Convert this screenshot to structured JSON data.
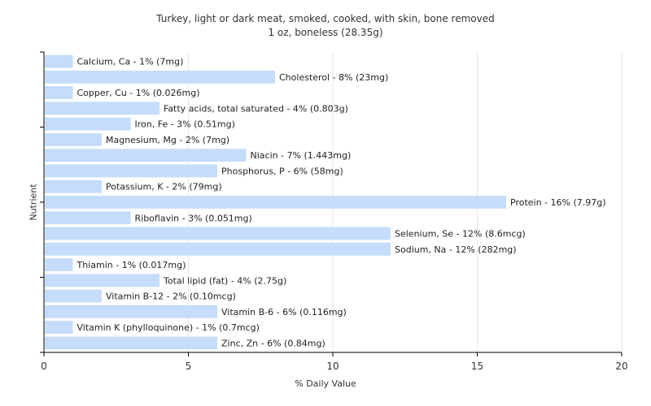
{
  "chart_data": {
    "type": "bar",
    "orientation": "horizontal",
    "title": "Turkey, light or dark meat, smoked, cooked, with skin, bone removed",
    "subtitle": "1 oz, boneless (28.35g)",
    "xlabel": "% Daily Value",
    "ylabel": "Nutrient",
    "xlim": [
      0,
      20
    ],
    "xticks": [
      "0",
      "5",
      "10",
      "15",
      "20"
    ],
    "grid": true,
    "bar_color": "#c5dcfb",
    "categories": [
      "Calcium, Ca",
      "Cholesterol",
      "Copper, Cu",
      "Fatty acids, total saturated",
      "Iron, Fe",
      "Magnesium, Mg",
      "Niacin",
      "Phosphorus, P",
      "Potassium, K",
      "Protein",
      "Riboflavin",
      "Selenium, Se",
      "Sodium, Na",
      "Thiamin",
      "Total lipid (fat)",
      "Vitamin B-12",
      "Vitamin B-6",
      "Vitamin K (phylloquinone)",
      "Zinc, Zn"
    ],
    "values": [
      1,
      8,
      1,
      4,
      3,
      2,
      7,
      6,
      2,
      16,
      3,
      12,
      12,
      1,
      4,
      2,
      6,
      1,
      6
    ],
    "bar_labels": [
      "Calcium, Ca - 1% (7mg)",
      "Cholesterol - 8% (23mg)",
      "Copper, Cu - 1% (0.026mg)",
      "Fatty acids, total saturated - 4% (0.803g)",
      "Iron, Fe - 3% (0.51mg)",
      "Magnesium, Mg - 2% (7mg)",
      "Niacin - 7% (1.443mg)",
      "Phosphorus, P - 6% (58mg)",
      "Potassium, K - 2% (79mg)",
      "Protein - 16% (7.97g)",
      "Riboflavin - 3% (0.051mg)",
      "Selenium, Se - 12% (8.6mcg)",
      "Sodium, Na - 12% (282mg)",
      "Thiamin - 1% (0.017mg)",
      "Total lipid (fat) - 4% (2.75g)",
      "Vitamin B-12 - 2% (0.10mcg)",
      "Vitamin B-6 - 6% (0.116mg)",
      "Vitamin K (phylloquinone) - 1% (0.7mcg)",
      "Zinc, Zn - 6% (0.84mg)"
    ]
  }
}
